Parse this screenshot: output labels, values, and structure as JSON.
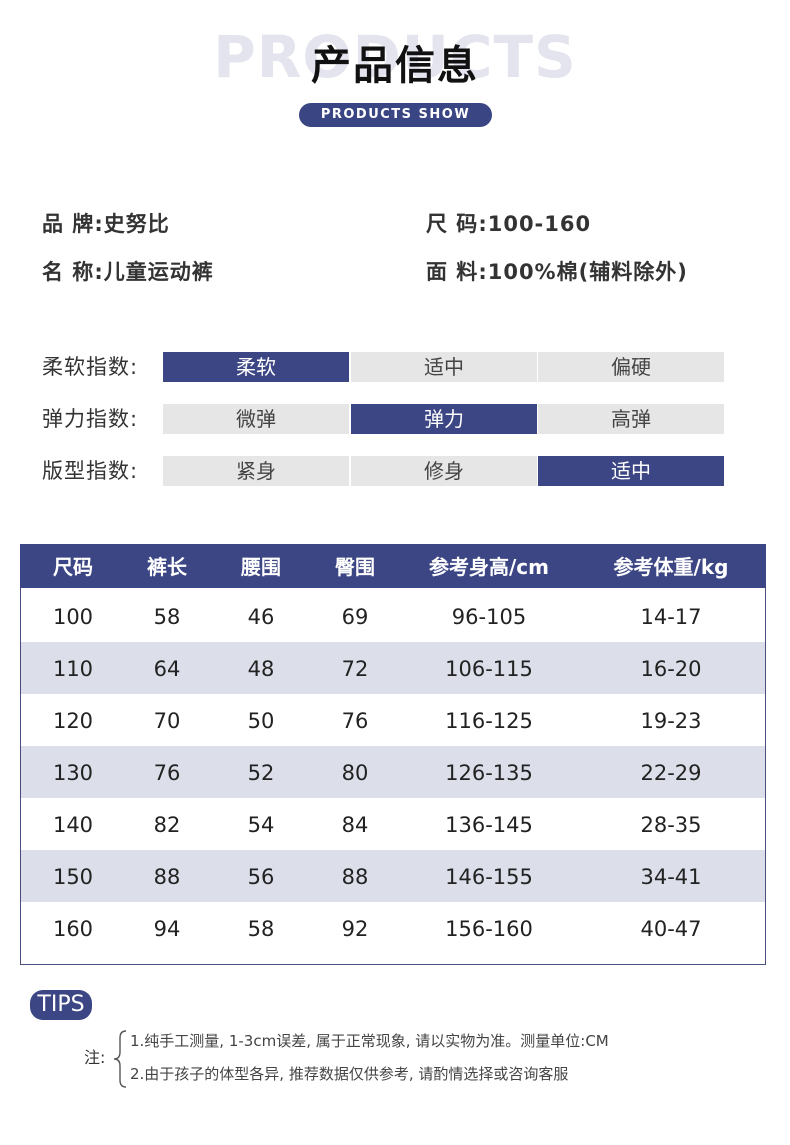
{
  "header": {
    "watermark": "PRODUCTS",
    "title": "产品信息",
    "subtitle": "PRODUCTS SHOW"
  },
  "info": {
    "brand_key": "品 牌",
    "brand_value": "史努比",
    "name_key": "名 称",
    "name_value": "儿童运动裤",
    "size_key": "尺 码",
    "size_value": "100-160",
    "material_key": "面 料",
    "material_value": "100%棉(辅料除外)"
  },
  "indices": [
    {
      "label": "柔软指数:",
      "options": [
        "柔软",
        "适中",
        "偏硬"
      ],
      "selected": 0
    },
    {
      "label": "弹力指数:",
      "options": [
        "微弹",
        "弹力",
        "高弹"
      ],
      "selected": 1
    },
    {
      "label": "版型指数:",
      "options": [
        "紧身",
        "修身",
        "适中"
      ],
      "selected": 2
    }
  ],
  "table": {
    "headers": [
      "尺码",
      "裤长",
      "腰围",
      "臀围",
      "参考身高/cm",
      "参考体重/kg"
    ],
    "rows": [
      [
        "100",
        "58",
        "46",
        "69",
        "96-105",
        "14-17"
      ],
      [
        "110",
        "64",
        "48",
        "72",
        "106-115",
        "16-20"
      ],
      [
        "120",
        "70",
        "50",
        "76",
        "116-125",
        "19-23"
      ],
      [
        "130",
        "76",
        "52",
        "80",
        "126-135",
        "22-29"
      ],
      [
        "140",
        "82",
        "54",
        "84",
        "136-145",
        "28-35"
      ],
      [
        "150",
        "88",
        "56",
        "88",
        "146-155",
        "34-41"
      ],
      [
        "160",
        "94",
        "58",
        "92",
        "156-160",
        "40-47"
      ]
    ]
  },
  "tips": {
    "badge": "TIPS",
    "prefix": "注:",
    "notes": [
      "1.纯手工测量, 1-3cm误差, 属于正常现象, 请以实物为准。测量单位:CM",
      "2.由于孩子的体型各异, 推荐数据仅供参考, 请酌情选择或咨询客服"
    ]
  },
  "colors": {
    "accent": "#3c4684",
    "row_alt": "#dcdfea",
    "option_bg": "#e6e6e6"
  }
}
